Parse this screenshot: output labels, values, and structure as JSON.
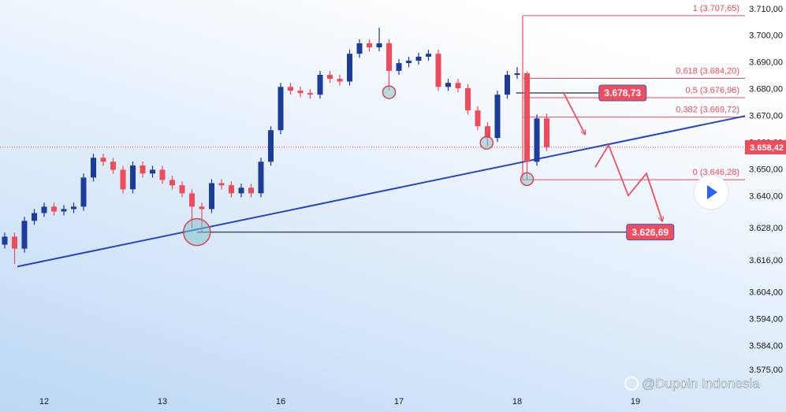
{
  "chart_data": {
    "type": "candlestick",
    "up_color": "#1c3c9c",
    "down_color": "#ef4b5b",
    "xlim": [
      -0.48,
      75.12
    ],
    "ylim": [
      3559.4,
      3713.5
    ],
    "xticks": [
      {
        "value": 4,
        "label": "12"
      },
      {
        "value": 16,
        "label": "13"
      },
      {
        "value": 28,
        "label": "16"
      },
      {
        "value": 40,
        "label": "17"
      },
      {
        "value": 52,
        "label": "18"
      },
      {
        "value": 64,
        "label": "19"
      }
    ],
    "yticks": [
      {
        "value": 3710,
        "label": "3.710,00"
      },
      {
        "value": 3700,
        "label": "3.700,00"
      },
      {
        "value": 3690,
        "label": "3.690,00"
      },
      {
        "value": 3680,
        "label": "3.680,00"
      },
      {
        "value": 3670,
        "label": "3.670,00"
      },
      {
        "value": 3660,
        "label": "3.660,00"
      },
      {
        "value": 3650,
        "label": "3.650,00"
      },
      {
        "value": 3640,
        "label": "3.640,00"
      },
      {
        "value": 3628,
        "label": "3.628,00"
      },
      {
        "value": 3616,
        "label": "3.616,00"
      },
      {
        "value": 3604,
        "label": "3.604,00"
      },
      {
        "value": 3594,
        "label": "3.594,00"
      },
      {
        "value": 3584,
        "label": "3.584,00"
      },
      {
        "value": 3575,
        "label": "3.575,00"
      }
    ],
    "open": [
      3622,
      3625,
      3620.5,
      3630.9,
      3633.8,
      3636.2,
      3634.4,
      3635.3,
      3636.2,
      3647.1,
      3654.5,
      3653,
      3650,
      3642.7,
      3651.6,
      3648.6,
      3650,
      3646.2,
      3644.2,
      3641.2,
      3636.2,
      3635.3,
      3645,
      3644.2,
      3641.2,
      3643.3,
      3641.2,
      3653,
      3664.8,
      3681,
      3679.6,
      3678.7,
      3678.1,
      3685.5,
      3684,
      3683,
      3693.4,
      3697.3,
      3695.8,
      3697.3,
      3687,
      3689.9,
      3690.8,
      3692.3,
      3693.4,
      3681,
      3682.5,
      3680.5,
      3672.2,
      3666.3,
      3661.9,
      3678.1,
      3685.5,
      3686.1,
      3653,
      3669.2
    ],
    "high": [
      3626.5,
      3626.5,
      3632.4,
      3635.3,
      3637.7,
      3637.7,
      3636.8,
      3637.7,
      3648.6,
      3656,
      3656,
      3654.5,
      3651.5,
      3653.1,
      3653.1,
      3651.5,
      3651.5,
      3647.7,
      3645.7,
      3642.7,
      3637.7,
      3646.5,
      3646.5,
      3645.7,
      3644.8,
      3644.8,
      3654.5,
      3666.3,
      3682.5,
      3682.5,
      3681.1,
      3680.2,
      3687,
      3687,
      3685.5,
      3694.9,
      3698.8,
      3698.8,
      3703.2,
      3698.8,
      3691.4,
      3692.3,
      3693.8,
      3694.9,
      3694.9,
      3684,
      3684,
      3682,
      3673.7,
      3667.8,
      3679.6,
      3687,
      3688.4,
      3686.8,
      3670.7,
      3671
    ],
    "low": [
      3620.5,
      3614.7,
      3619,
      3629.4,
      3632.3,
      3632.9,
      3632.9,
      3633.8,
      3634.7,
      3645.6,
      3651.5,
      3648.5,
      3641.2,
      3641.2,
      3647.1,
      3647.1,
      3644.7,
      3642.7,
      3639.7,
      3628,
      3626.7,
      3633.8,
      3642.7,
      3639.7,
      3639.7,
      3639.7,
      3639.7,
      3651.5,
      3663.3,
      3678.1,
      3677.2,
      3676.6,
      3676.6,
      3682.5,
      3681.5,
      3681.5,
      3691.9,
      3694.3,
      3694.3,
      3679.6,
      3685.5,
      3688.4,
      3689.3,
      3690.8,
      3679.5,
      3679.5,
      3679,
      3670.7,
      3664.8,
      3659,
      3660.4,
      3676.6,
      3684,
      3646.3,
      3651.5,
      3657
    ],
    "close": [
      3625,
      3620.5,
      3630.9,
      3633.8,
      3636.2,
      3634.4,
      3635.3,
      3636.2,
      3647.1,
      3654.5,
      3653,
      3650,
      3642.7,
      3651.6,
      3648.6,
      3650,
      3646.2,
      3644.2,
      3641.2,
      3636.2,
      3635.3,
      3645,
      3644.2,
      3641.2,
      3643.3,
      3641.2,
      3653,
      3664.8,
      3681,
      3679.6,
      3678.7,
      3678.1,
      3685.5,
      3684,
      3683,
      3693.4,
      3697.3,
      3695.8,
      3697.3,
      3687,
      3689.9,
      3690.8,
      3692.3,
      3693.4,
      3681,
      3682.5,
      3680.5,
      3672.2,
      3666.3,
      3661.9,
      3678.1,
      3685.5,
      3686.1,
      3653,
      3669.2,
      3658.42
    ],
    "last_price": {
      "value": 3658.42,
      "label": "3.658,42"
    },
    "trendline": {
      "color": "#2946c2",
      "x": [
        1.28,
        75.12
      ],
      "y": [
        3613.8,
        3670.1
      ]
    },
    "fibonacci": {
      "color": "#ef4b5b",
      "x": 52.56,
      "levels": [
        {
          "value": 3707.65,
          "label": "1 (3.707,65)"
        },
        {
          "value": 3684.2,
          "label": "0,618 (3.684,20)"
        },
        {
          "value": 3676.96,
          "label": "0,5 (3.676,96)"
        },
        {
          "value": 3669.72,
          "label": "0,382 (3.669,72)"
        },
        {
          "value": 3646.28,
          "label": "0 (3.646,28)"
        }
      ]
    },
    "targets": [
      {
        "value": 3678.73,
        "label": "3.678,73",
        "x": [
          51.9,
          60.3
        ]
      },
      {
        "value": 3626.69,
        "label": "3.626,69",
        "x": [
          19.5,
          63.1
        ]
      }
    ],
    "highlights": {
      "x": [
        19.5,
        39,
        48.9,
        53
      ],
      "y": [
        3626.69,
        3679,
        3660.1,
        3646.5
      ]
    },
    "projection": {
      "color": "#f0505f",
      "x": [
        56.72,
        58.88,
        null,
        59.92,
        61.28,
        63.28,
        65.12,
        66.72
      ],
      "y": [
        3678.7,
        3663.35,
        null,
        3650.96,
        3659.22,
        3640.34,
        3648.6,
        3630.9
      ]
    },
    "watermark": "@Dupoin Indonesia"
  }
}
